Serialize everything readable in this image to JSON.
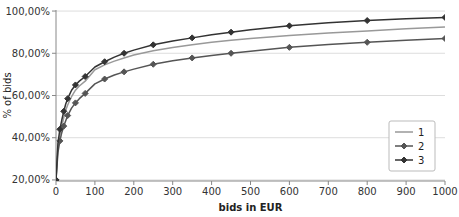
{
  "chart_data": {
    "type": "line",
    "x_label": "bids in EUR",
    "y_label": "% of bids",
    "x": [
      0,
      5,
      10,
      15,
      20,
      25,
      30,
      40,
      50,
      60,
      75,
      100,
      125,
      150,
      175,
      200,
      250,
      300,
      350,
      400,
      450,
      500,
      600,
      700,
      800,
      900,
      1000
    ],
    "series": [
      {
        "name": "1",
        "color": "#999999",
        "values": [
          0.2,
          0.355,
          0.41,
          0.455,
          0.495,
          0.53,
          0.555,
          0.595,
          0.625,
          0.645,
          0.668,
          0.722,
          0.745,
          0.763,
          0.778,
          0.792,
          0.812,
          0.827,
          0.84,
          0.852,
          0.862,
          0.87,
          0.884,
          0.896,
          0.906,
          0.916,
          0.925
        ]
      },
      {
        "name": "2",
        "color": "#555555",
        "marker": "diamond",
        "values": [
          0.2,
          0.33,
          0.385,
          0.425,
          0.455,
          0.48,
          0.505,
          0.54,
          0.565,
          0.585,
          0.61,
          0.655,
          0.678,
          0.697,
          0.712,
          0.725,
          0.748,
          0.765,
          0.778,
          0.79,
          0.8,
          0.81,
          0.828,
          0.842,
          0.852,
          0.862,
          0.87
        ]
      },
      {
        "name": "3",
        "color": "#333333",
        "marker": "diamond",
        "values": [
          0.2,
          0.375,
          0.44,
          0.485,
          0.525,
          0.56,
          0.585,
          0.625,
          0.65,
          0.668,
          0.69,
          0.735,
          0.76,
          0.782,
          0.8,
          0.815,
          0.84,
          0.858,
          0.873,
          0.888,
          0.9,
          0.912,
          0.93,
          0.945,
          0.955,
          0.963,
          0.97
        ]
      }
    ],
    "xlim": [
      0,
      1000
    ],
    "ylim": [
      0.195,
      1.005
    ],
    "xticks": [
      0,
      100,
      200,
      300,
      400,
      500,
      600,
      700,
      800,
      900,
      1000
    ],
    "yticks": [
      {
        "value": 0.2,
        "label": "20,00%"
      },
      {
        "value": 0.4,
        "label": "40,00%"
      },
      {
        "value": 0.6,
        "label": "60,00%"
      },
      {
        "value": 0.8,
        "label": "80,00%"
      },
      {
        "value": 1.0,
        "label": "100,00%"
      }
    ],
    "grid": true,
    "legend": "lower right"
  }
}
